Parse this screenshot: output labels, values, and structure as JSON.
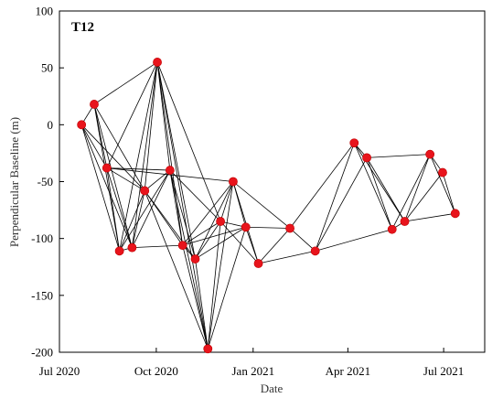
{
  "chart_data": {
    "type": "scatter",
    "panel_label": "T12",
    "xlabel": "Date",
    "ylabel": "Perpendicular Baseline (m)",
    "xlim": [
      "2020-07-01",
      "2021-08-09"
    ],
    "ylim": [
      -200,
      100
    ],
    "x_ticks": [
      {
        "date": "2020-07-01",
        "label": "Jul 2020"
      },
      {
        "date": "2020-10-01",
        "label": "Oct 2020"
      },
      {
        "date": "2021-01-01",
        "label": "Jan 2021"
      },
      {
        "date": "2021-04-01",
        "label": "Apr 2021"
      },
      {
        "date": "2021-07-01",
        "label": "Jul 2021"
      }
    ],
    "y_ticks": [
      100,
      50,
      0,
      -50,
      -100,
      -150,
      -200
    ],
    "grid": false,
    "point_color": "#e8141c",
    "line_color": "#000000",
    "points": [
      {
        "x": "2020-07-22",
        "y": 0
      },
      {
        "x": "2020-08-03",
        "y": 18
      },
      {
        "x": "2020-08-15",
        "y": -38
      },
      {
        "x": "2020-08-27",
        "y": -111
      },
      {
        "x": "2020-09-08",
        "y": -108
      },
      {
        "x": "2020-09-20",
        "y": -58
      },
      {
        "x": "2020-10-02",
        "y": 55
      },
      {
        "x": "2020-10-14",
        "y": -40
      },
      {
        "x": "2020-10-26",
        "y": -106
      },
      {
        "x": "2020-11-07",
        "y": -118
      },
      {
        "x": "2020-11-19",
        "y": -197
      },
      {
        "x": "2020-12-01",
        "y": -85
      },
      {
        "x": "2020-12-13",
        "y": -50
      },
      {
        "x": "2020-12-25",
        "y": -90
      },
      {
        "x": "2021-01-06",
        "y": -122
      },
      {
        "x": "2021-02-05",
        "y": -91
      },
      {
        "x": "2021-03-01",
        "y": -111
      },
      {
        "x": "2021-04-07",
        "y": -16
      },
      {
        "x": "2021-04-19",
        "y": -29
      },
      {
        "x": "2021-05-13",
        "y": -92
      },
      {
        "x": "2021-05-25",
        "y": -85
      },
      {
        "x": "2021-06-18",
        "y": -26
      },
      {
        "x": "2021-06-30",
        "y": -42
      },
      {
        "x": "2021-07-12",
        "y": -78
      }
    ],
    "pairs": [
      [
        0,
        1
      ],
      [
        0,
        2
      ],
      [
        0,
        3
      ],
      [
        0,
        4
      ],
      [
        0,
        5
      ],
      [
        1,
        2
      ],
      [
        1,
        3
      ],
      [
        1,
        4
      ],
      [
        1,
        5
      ],
      [
        1,
        6
      ],
      [
        2,
        3
      ],
      [
        2,
        4
      ],
      [
        2,
        5
      ],
      [
        2,
        6
      ],
      [
        2,
        7
      ],
      [
        2,
        12
      ],
      [
        3,
        4
      ],
      [
        3,
        5
      ],
      [
        3,
        6
      ],
      [
        3,
        7
      ],
      [
        4,
        5
      ],
      [
        4,
        6
      ],
      [
        4,
        7
      ],
      [
        4,
        8
      ],
      [
        5,
        6
      ],
      [
        5,
        7
      ],
      [
        5,
        8
      ],
      [
        5,
        9
      ],
      [
        5,
        10
      ],
      [
        6,
        7
      ],
      [
        6,
        8
      ],
      [
        6,
        9
      ],
      [
        6,
        10
      ],
      [
        6,
        11
      ],
      [
        7,
        8
      ],
      [
        7,
        9
      ],
      [
        7,
        10
      ],
      [
        7,
        11
      ],
      [
        8,
        9
      ],
      [
        8,
        10
      ],
      [
        8,
        11
      ],
      [
        8,
        12
      ],
      [
        8,
        13
      ],
      [
        9,
        10
      ],
      [
        9,
        11
      ],
      [
        9,
        12
      ],
      [
        9,
        13
      ],
      [
        10,
        11
      ],
      [
        10,
        12
      ],
      [
        10,
        13
      ],
      [
        11,
        12
      ],
      [
        11,
        13
      ],
      [
        11,
        14
      ],
      [
        12,
        13
      ],
      [
        12,
        14
      ],
      [
        12,
        15
      ],
      [
        13,
        14
      ],
      [
        13,
        15
      ],
      [
        14,
        15
      ],
      [
        14,
        16
      ],
      [
        15,
        16
      ],
      [
        15,
        17
      ],
      [
        16,
        17
      ],
      [
        16,
        18
      ],
      [
        16,
        19
      ],
      [
        17,
        18
      ],
      [
        17,
        19
      ],
      [
        17,
        20
      ],
      [
        18,
        19
      ],
      [
        18,
        20
      ],
      [
        18,
        21
      ],
      [
        19,
        20
      ],
      [
        19,
        21
      ],
      [
        20,
        21
      ],
      [
        20,
        22
      ],
      [
        20,
        23
      ],
      [
        21,
        22
      ],
      [
        21,
        23
      ],
      [
        22,
        23
      ]
    ]
  }
}
